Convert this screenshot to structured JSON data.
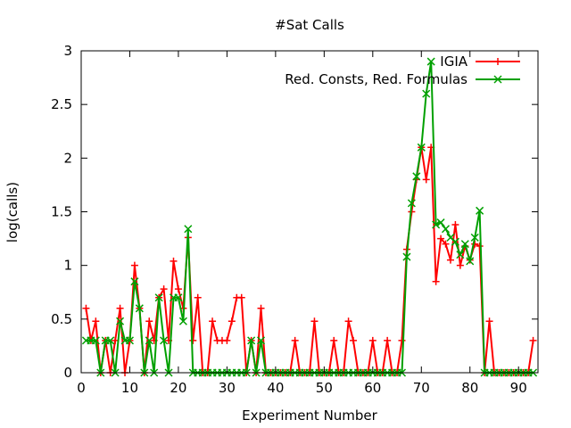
{
  "chart_data": {
    "type": "line",
    "title": "#Sat Calls",
    "xlabel": "Experiment Number",
    "ylabel": "log(calls)",
    "xlim": [
      0,
      94
    ],
    "ylim": [
      0,
      3
    ],
    "xticks": [
      "0",
      "10",
      "20",
      "30",
      "40",
      "50",
      "60",
      "70",
      "80",
      "90"
    ],
    "yticks": [
      "0",
      "0.5",
      "1",
      "1.5",
      "2",
      "2.5",
      "3"
    ],
    "grid": false,
    "legend_position": "top-right",
    "series": [
      {
        "name": "IGIA",
        "color": "#ff0000",
        "marker": "plus",
        "x": [
          1,
          2,
          3,
          4,
          5,
          6,
          7,
          8,
          9,
          10,
          11,
          12,
          13,
          14,
          15,
          16,
          17,
          18,
          19,
          20,
          21,
          22,
          23,
          24,
          25,
          26,
          27,
          28,
          29,
          30,
          31,
          32,
          33,
          34,
          35,
          36,
          37,
          38,
          39,
          40,
          41,
          42,
          43,
          44,
          45,
          46,
          47,
          48,
          49,
          50,
          51,
          52,
          53,
          54,
          55,
          56,
          57,
          58,
          59,
          60,
          61,
          62,
          63,
          64,
          65,
          66,
          67,
          68,
          69,
          70,
          71,
          72,
          73,
          74,
          75,
          76,
          77,
          78,
          79,
          80,
          81,
          82,
          83,
          84,
          85,
          86,
          87,
          88,
          89,
          90,
          91,
          92,
          93
        ],
        "values": [
          0.6,
          0.3,
          0.48,
          0,
          0.3,
          0,
          0.3,
          0.6,
          0,
          0.3,
          1.0,
          0.6,
          0,
          0.48,
          0.3,
          0.7,
          0.78,
          0.3,
          1.04,
          0.78,
          0.6,
          1.26,
          0.3,
          0.7,
          0,
          0,
          0.48,
          0.3,
          0.3,
          0.3,
          0.48,
          0.7,
          0.7,
          0,
          0.3,
          0,
          0.6,
          0,
          0,
          0,
          0,
          0,
          0,
          0.3,
          0,
          0,
          0,
          0.48,
          0,
          0,
          0,
          0.3,
          0,
          0,
          0.48,
          0.3,
          0,
          0,
          0,
          0.3,
          0,
          0,
          0.3,
          0,
          0,
          0.3,
          1.15,
          1.5,
          1.8,
          2.1,
          1.8,
          2.1,
          0.85,
          1.25,
          1.2,
          1.05,
          1.38,
          1.0,
          1.18,
          1.05,
          1.2,
          1.18,
          0,
          0.48,
          0,
          0,
          0,
          0,
          0,
          0,
          0,
          0,
          0.3
        ]
      },
      {
        "name": "Red. Consts, Red. Formulas",
        "color": "#00a000",
        "marker": "cross",
        "x": [
          1,
          2,
          3,
          4,
          5,
          6,
          7,
          8,
          9,
          10,
          11,
          12,
          13,
          14,
          15,
          16,
          17,
          18,
          19,
          20,
          21,
          22,
          23,
          24,
          25,
          26,
          27,
          28,
          29,
          30,
          31,
          32,
          33,
          34,
          35,
          36,
          37,
          38,
          39,
          40,
          41,
          42,
          43,
          44,
          45,
          46,
          47,
          48,
          49,
          50,
          51,
          52,
          53,
          54,
          55,
          56,
          57,
          58,
          59,
          60,
          61,
          62,
          63,
          64,
          65,
          66,
          67,
          68,
          69,
          70,
          71,
          72,
          73,
          74,
          75,
          76,
          77,
          78,
          79,
          80,
          81,
          82,
          83,
          84,
          85,
          86,
          87,
          88,
          89,
          90,
          91,
          92,
          93
        ],
        "values": [
          0.3,
          0.3,
          0.3,
          0,
          0.3,
          0.3,
          0,
          0.48,
          0.3,
          0.3,
          0.85,
          0.6,
          0,
          0.3,
          0,
          0.7,
          0.3,
          0,
          0.7,
          0.7,
          0.48,
          1.34,
          0,
          0,
          0,
          0,
          0,
          0,
          0,
          0,
          0,
          0,
          0,
          0,
          0.3,
          0,
          0.3,
          0,
          0,
          0,
          0,
          0,
          0,
          0,
          0,
          0,
          0,
          0,
          0,
          0,
          0,
          0,
          0,
          0,
          0,
          0,
          0,
          0,
          0,
          0,
          0,
          0,
          0,
          0,
          0,
          0,
          1.08,
          1.58,
          1.83,
          2.1,
          2.6,
          2.9,
          1.38,
          1.4,
          1.34,
          1.26,
          1.22,
          1.1,
          1.2,
          1.04,
          1.26,
          1.51,
          0,
          0,
          0,
          0,
          0,
          0,
          0,
          0,
          0,
          0,
          0
        ]
      }
    ]
  }
}
